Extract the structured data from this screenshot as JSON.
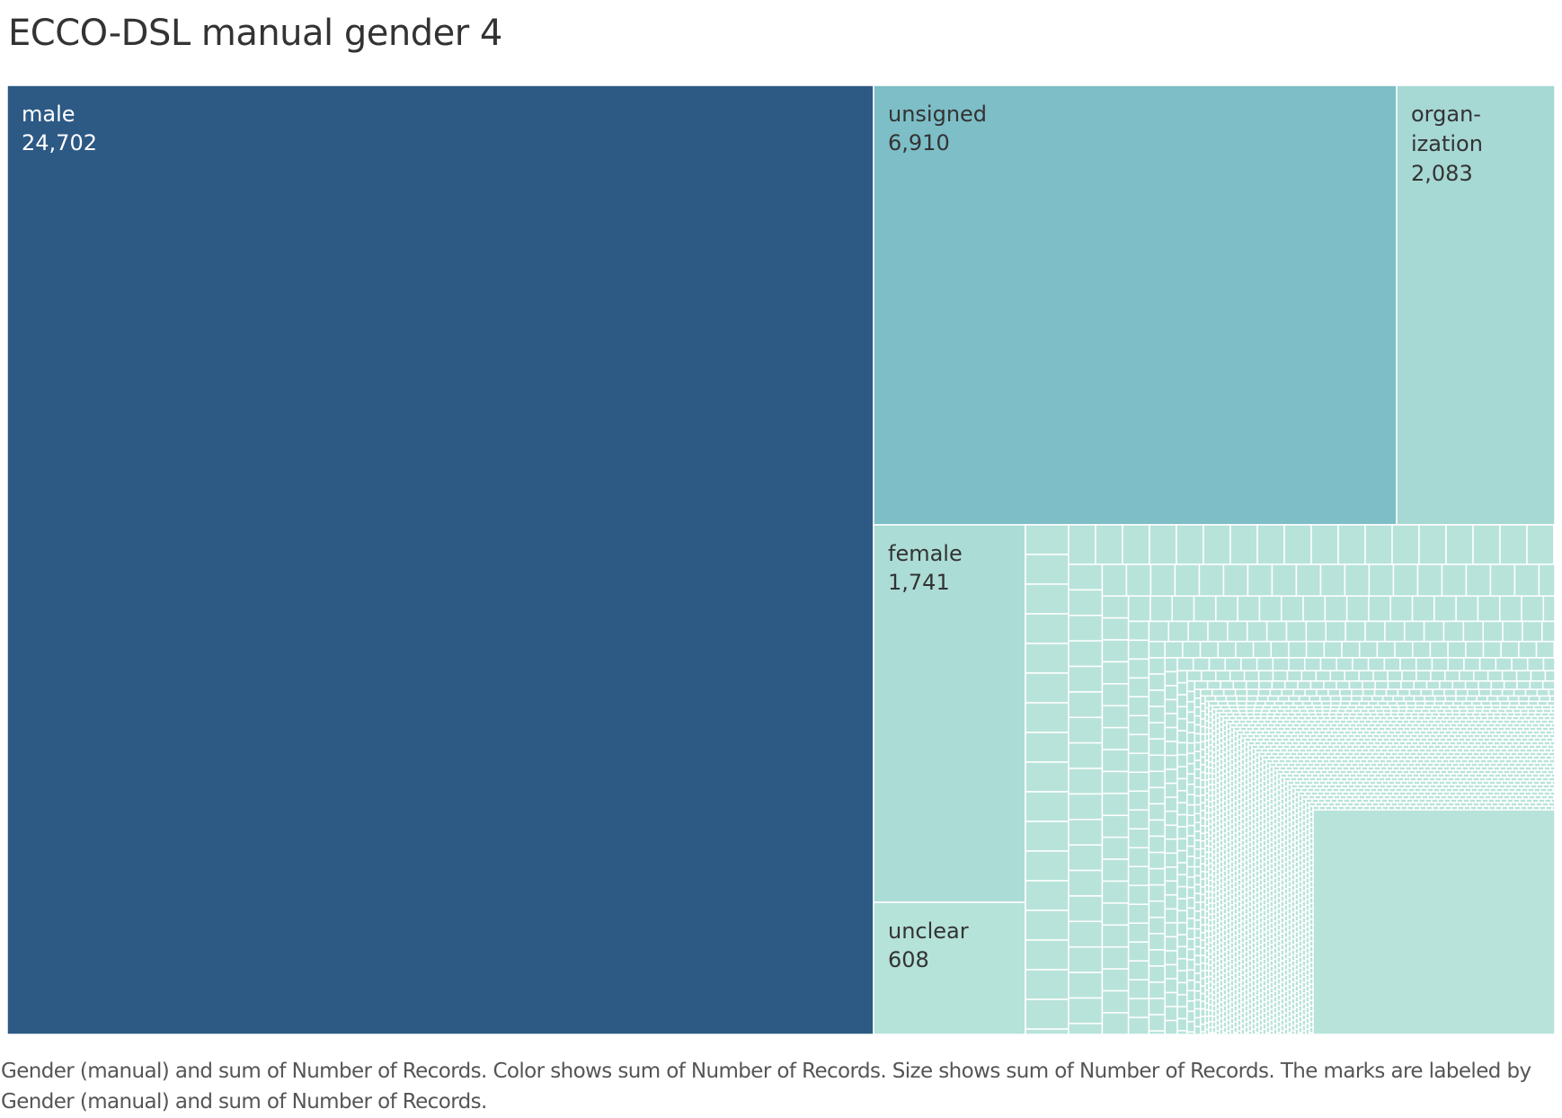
{
  "title": "ECCO-DSL manual gender 4",
  "caption": "Gender (manual) and sum of Number of Records.  Color shows sum of Number of Records.  Size shows sum of Number of Records.  The marks are labeled by Gender (manual) and sum of Number of Records.",
  "colors": {
    "male": "#2d5985",
    "unsigned": "#7dbec7",
    "organization": "#a6d8d4",
    "female": "#acdcd6",
    "unclear": "#b5e2d9",
    "tail": "#b8e3da",
    "cell_border": "#ffffff",
    "dark_text": "#ffffff",
    "light_text": "#333333"
  },
  "chart_data": {
    "type": "treemap",
    "measure": "sum of Number of Records",
    "dimension": "Gender (manual)",
    "items": [
      {
        "key": "male",
        "label_lines": [
          "male"
        ],
        "value_label": "24,702",
        "value": 24702
      },
      {
        "key": "unsigned",
        "label_lines": [
          "unsigned"
        ],
        "value_label": "6,910",
        "value": 6910
      },
      {
        "key": "organization",
        "label_lines": [
          "organ-",
          "ization"
        ],
        "value_label": "2,083",
        "value": 2083
      },
      {
        "key": "female",
        "label_lines": [
          "female"
        ],
        "value_label": "1,741",
        "value": 1741
      },
      {
        "key": "unclear",
        "label_lines": [
          "unclear"
        ],
        "value_label": "608",
        "value": 608
      }
    ]
  }
}
